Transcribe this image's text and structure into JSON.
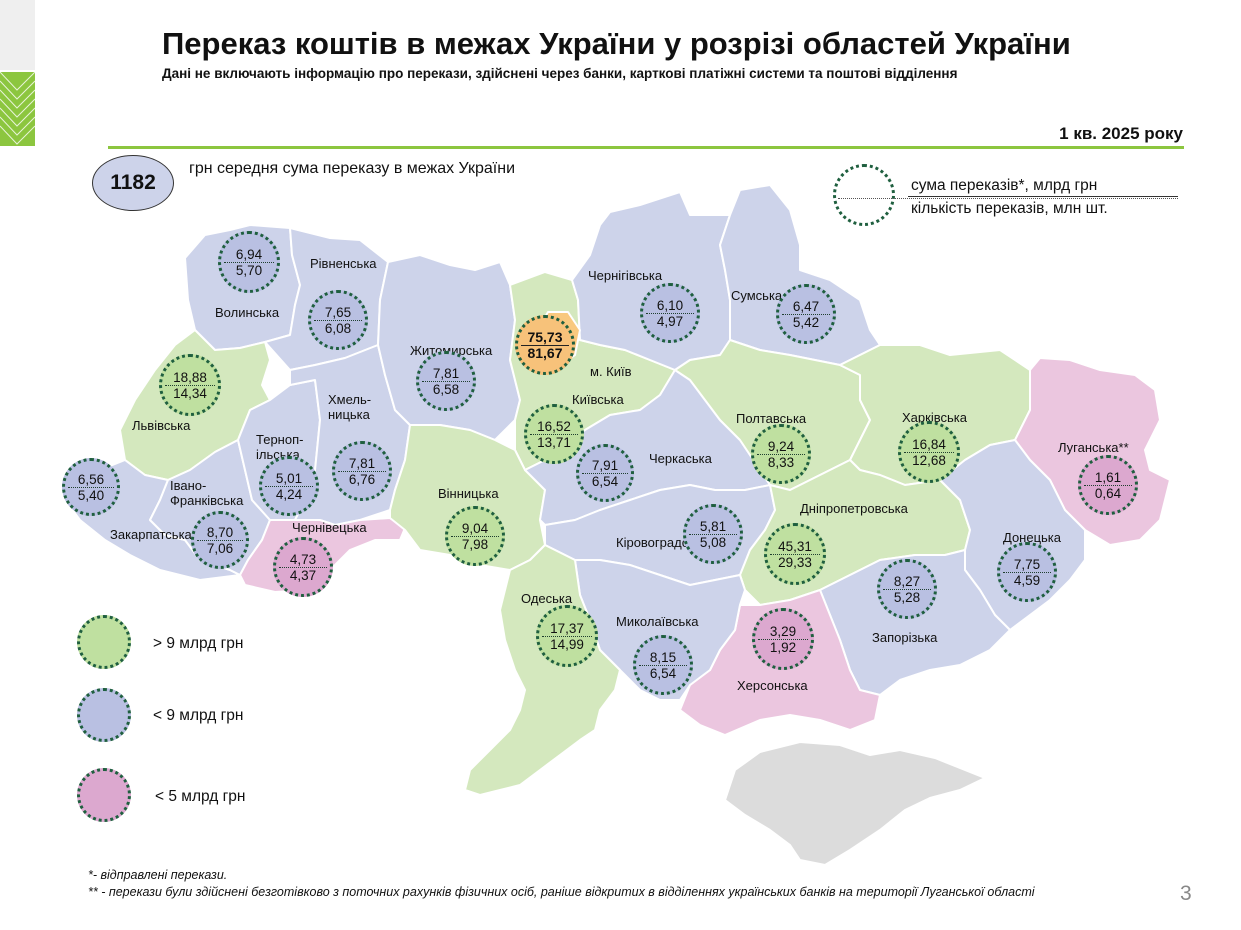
{
  "header": {
    "title": "Переказ коштів в межах України у розрізі областей України",
    "subtitle": "Дані не включають інформацію про перекази, здійснені через банки, карткові платіжні системи та поштові відділення",
    "period": "1 кв. 2025 року"
  },
  "average": {
    "value": "1182",
    "text": "грн середня сума переказу в межах України"
  },
  "key": {
    "top": "сума переказів*, млрд грн",
    "bottom": "кількість переказів, млн шт."
  },
  "colors": {
    "green": "#d4e8be",
    "blue": "#cdd3ea",
    "pink": "#ebc6df",
    "orange": "#f9c97f",
    "grey": "#dcdcdc",
    "accent": "#8cc63f",
    "dots": "#1f5f3f"
  },
  "regions": [
    {
      "id": "volynska",
      "name": "Волинська",
      "sum": "6,94",
      "count": "5,70",
      "cls": "blue"
    },
    {
      "id": "rivnenska",
      "name": "Рівненська",
      "sum": "7,65",
      "count": "6,08",
      "cls": "blue"
    },
    {
      "id": "lvivska",
      "name": "Львівська",
      "sum": "18,88",
      "count": "14,34",
      "cls": "green"
    },
    {
      "id": "zakarpatska",
      "name": "Закарпатська",
      "sum": "6,56",
      "count": "5,40",
      "cls": "blue"
    },
    {
      "id": "ivano",
      "name": "Івано-\nФранківська",
      "sum": "8,70",
      "count": "7,06",
      "cls": "blue"
    },
    {
      "id": "ternopilska",
      "name": "Терноп-\nільська",
      "sum": "5,01",
      "count": "4,24",
      "cls": "blue"
    },
    {
      "id": "khmelnytska",
      "name": "Хмель-\nницька",
      "sum": "7,81",
      "count": "6,76",
      "cls": "blue"
    },
    {
      "id": "chernivetska",
      "name": "Чернівецька",
      "sum": "4,73",
      "count": "4,37",
      "cls": "pink"
    },
    {
      "id": "zhytomyrska",
      "name": "Житомирська",
      "sum": "7,81",
      "count": "6,58",
      "cls": "blue"
    },
    {
      "id": "kyiv_city",
      "name": "м. Київ",
      "sum": "75,73",
      "count": "81,67",
      "cls": "orange"
    },
    {
      "id": "kyivska",
      "name": "Київська",
      "sum": "16,52",
      "count": "13,71",
      "cls": "green"
    },
    {
      "id": "vinnytska",
      "name": "Вінницька",
      "sum": "9,04",
      "count": "7,98",
      "cls": "green"
    },
    {
      "id": "chernihivska",
      "name": "Чернігівська",
      "sum": "6,10",
      "count": "4,97",
      "cls": "blue"
    },
    {
      "id": "sumska",
      "name": "Сумська",
      "sum": "6,47",
      "count": "5,42",
      "cls": "blue"
    },
    {
      "id": "cherkaska",
      "name": "Черкаська",
      "sum": "7,91",
      "count": "6,54",
      "cls": "blue"
    },
    {
      "id": "poltavska",
      "name": "Полтавська",
      "sum": "9,24",
      "count": "8,33",
      "cls": "green"
    },
    {
      "id": "kharkivska",
      "name": "Харківська",
      "sum": "16,84",
      "count": "12,68",
      "cls": "green"
    },
    {
      "id": "luhanska",
      "name": "Луганська**",
      "sum": "1,61",
      "count": "0,64",
      "cls": "pink"
    },
    {
      "id": "kirovohradska",
      "name": "Кіровоградська",
      "sum": "5,81",
      "count": "5,08",
      "cls": "blue"
    },
    {
      "id": "dnipropetrovska",
      "name": "Дніпропетровська",
      "sum": "45,31",
      "count": "29,33",
      "cls": "green"
    },
    {
      "id": "donetska",
      "name": "Донецька",
      "sum": "7,75",
      "count": "4,59",
      "cls": "blue"
    },
    {
      "id": "odeska",
      "name": "Одеська",
      "sum": "17,37",
      "count": "14,99",
      "cls": "green"
    },
    {
      "id": "mykolaivska",
      "name": "Миколаївська",
      "sum": "8,15",
      "count": "6,54",
      "cls": "blue"
    },
    {
      "id": "khersonska",
      "name": "Херсонська",
      "sum": "3,29",
      "count": "1,92",
      "cls": "pink"
    },
    {
      "id": "zaporizka",
      "name": "Запорізька",
      "sum": "8,27",
      "count": "5,28",
      "cls": "blue"
    }
  ],
  "legend": [
    {
      "label": "> 9 млрд грн",
      "color": "#bfe0a0"
    },
    {
      "label": "< 9 млрд грн",
      "color": "#b9c0e2"
    },
    {
      "label": "< 5 млрд грн",
      "color": "#dca8cf"
    }
  ],
  "footnotes": [
    "*- відправлені перекази.",
    "** - перекази були здійснені безготівково з поточних рахунків фізичних осіб, раніше відкритих в відділеннях українських банків на території Луганської області"
  ],
  "page_number": "3"
}
